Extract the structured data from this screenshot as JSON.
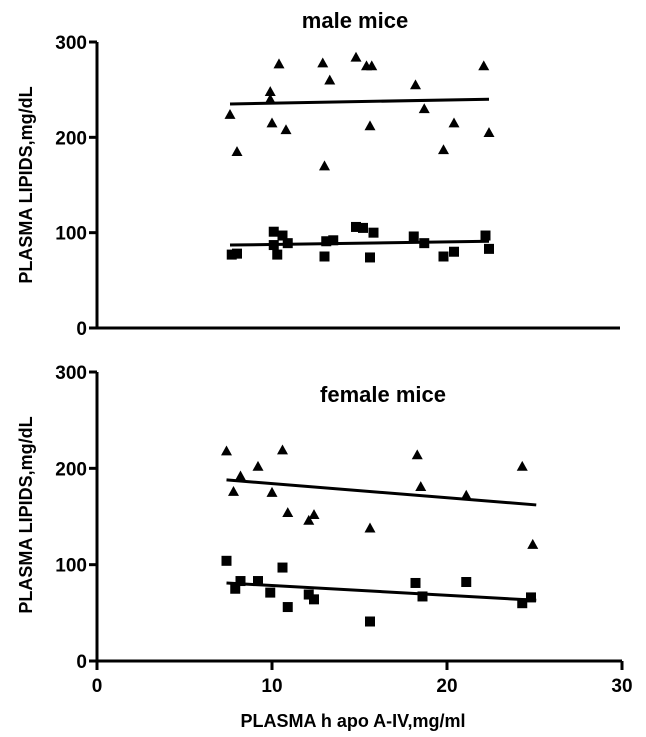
{
  "chart_data": [
    {
      "type": "scatter",
      "title": "male mice",
      "ylabel": "PLASMA LIPIDS,mg/dL",
      "xlabel": "",
      "xlim": [
        0,
        30
      ],
      "ylim": [
        0,
        300
      ],
      "yticks": [
        0,
        100,
        200,
        300
      ],
      "xticks": [],
      "series": [
        {
          "marker": "triangle",
          "points": [
            [
              7.6,
              224
            ],
            [
              8.0,
              185
            ],
            [
              9.9,
              240
            ],
            [
              9.9,
              248
            ],
            [
              10.0,
              215
            ],
            [
              10.4,
              277
            ],
            [
              10.8,
              208
            ],
            [
              12.9,
              278
            ],
            [
              13.0,
              170
            ],
            [
              13.3,
              260
            ],
            [
              14.8,
              284
            ],
            [
              15.4,
              275
            ],
            [
              15.6,
              212
            ],
            [
              15.7,
              275
            ],
            [
              18.2,
              255
            ],
            [
              18.7,
              230
            ],
            [
              19.8,
              187
            ],
            [
              20.4,
              215
            ],
            [
              22.1,
              275
            ],
            [
              22.4,
              205
            ]
          ],
          "fit": [
            [
              7.6,
              235
            ],
            [
              22.4,
              240
            ]
          ]
        },
        {
          "marker": "square",
          "points": [
            [
              7.7,
              77
            ],
            [
              8.0,
              78
            ],
            [
              10.1,
              101
            ],
            [
              10.1,
              87
            ],
            [
              10.3,
              77
            ],
            [
              10.6,
              97
            ],
            [
              10.9,
              89
            ],
            [
              13.0,
              75
            ],
            [
              13.1,
              91
            ],
            [
              13.5,
              92
            ],
            [
              14.8,
              106
            ],
            [
              15.2,
              105
            ],
            [
              15.6,
              74
            ],
            [
              15.8,
              100
            ],
            [
              18.1,
              96
            ],
            [
              18.7,
              89
            ],
            [
              19.8,
              75
            ],
            [
              20.4,
              80
            ],
            [
              22.2,
              97
            ],
            [
              22.4,
              83
            ]
          ],
          "fit": [
            [
              7.6,
              87
            ],
            [
              22.4,
              91
            ]
          ]
        }
      ]
    },
    {
      "type": "scatter",
      "title": "female mice",
      "ylabel": "PLASMA LIPIDS,mg/dL",
      "xlabel": "PLASMA h apo A-IV,mg/ml",
      "xlim": [
        0,
        30
      ],
      "ylim": [
        0,
        300
      ],
      "yticks": [
        0,
        100,
        200,
        300
      ],
      "xticks": [
        0,
        10,
        20,
        30
      ],
      "series": [
        {
          "marker": "triangle",
          "points": [
            [
              7.4,
              218
            ],
            [
              7.8,
              176
            ],
            [
              8.2,
              192
            ],
            [
              9.2,
              202
            ],
            [
              10.0,
              175
            ],
            [
              10.6,
              219
            ],
            [
              10.9,
              154
            ],
            [
              12.1,
              146
            ],
            [
              12.4,
              152
            ],
            [
              15.6,
              138
            ],
            [
              18.3,
              214
            ],
            [
              18.5,
              181
            ],
            [
              21.1,
              172
            ],
            [
              24.3,
              202
            ],
            [
              24.9,
              121
            ]
          ],
          "fit": [
            [
              7.4,
              188
            ],
            [
              25.1,
              162
            ]
          ]
        },
        {
          "marker": "square",
          "points": [
            [
              7.4,
              104
            ],
            [
              7.9,
              75
            ],
            [
              8.2,
              83
            ],
            [
              9.2,
              83
            ],
            [
              9.9,
              71
            ],
            [
              10.6,
              97
            ],
            [
              10.9,
              56
            ],
            [
              12.1,
              69
            ],
            [
              12.4,
              64
            ],
            [
              15.6,
              41
            ],
            [
              18.2,
              81
            ],
            [
              18.6,
              67
            ],
            [
              21.1,
              82
            ],
            [
              24.3,
              60
            ],
            [
              24.8,
              66
            ]
          ],
          "fit": [
            [
              7.4,
              81
            ],
            [
              25.1,
              63
            ]
          ]
        }
      ]
    }
  ]
}
